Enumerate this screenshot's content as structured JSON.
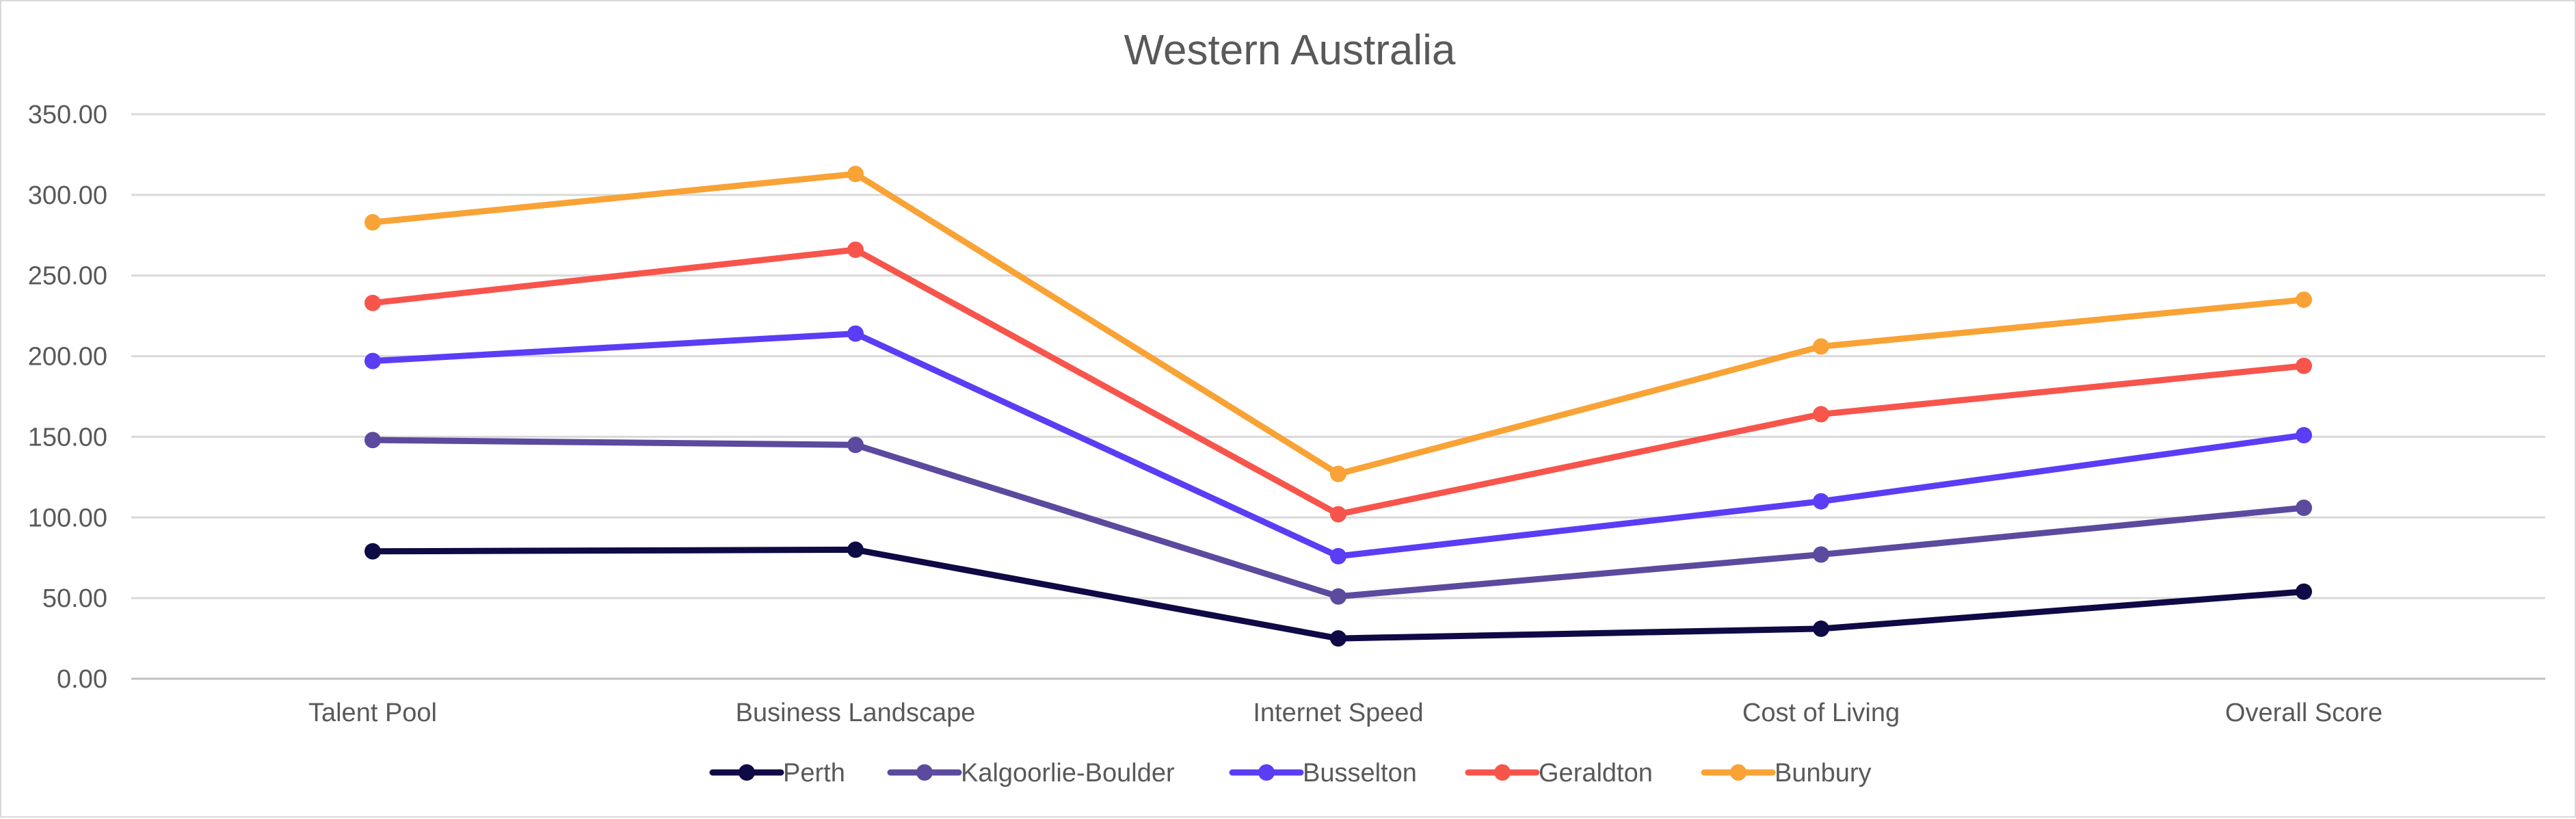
{
  "chart_data": {
    "type": "line",
    "title": "Western Australia",
    "categories": [
      "Talent Pool",
      "Business Landscape",
      "Internet Speed",
      "Cost of Living",
      "Overall Score"
    ],
    "ylim": [
      0,
      350
    ],
    "y_ticks": [
      "0.00",
      "50.00",
      "100.00",
      "150.00",
      "200.00",
      "250.00",
      "300.00",
      "350.00"
    ],
    "grid": "horizontal",
    "legend_position": "bottom",
    "series": [
      {
        "name": "Perth",
        "color": "#0e0a45",
        "values": [
          79,
          80,
          25,
          31,
          54
        ]
      },
      {
        "name": "Kalgoorlie-Boulder",
        "color": "#5c4a9e",
        "values": [
          148,
          145,
          51,
          77,
          106
        ]
      },
      {
        "name": "Busselton",
        "color": "#5b3df5",
        "values": [
          197,
          214,
          76,
          110,
          151
        ]
      },
      {
        "name": "Geraldton",
        "color": "#f7554c",
        "values": [
          233,
          266,
          102,
          164,
          194
        ]
      },
      {
        "name": "Bunbury",
        "color": "#f9a235",
        "values": [
          283,
          313,
          127,
          206,
          235
        ]
      }
    ]
  }
}
